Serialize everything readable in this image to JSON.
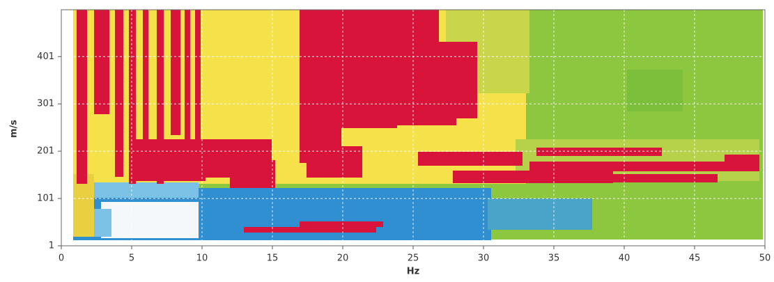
{
  "chart_data": {
    "type": "heatmap",
    "x_label": "Hz",
    "y_label": "m/s",
    "xlim": [
      0,
      50
    ],
    "xticks": [
      0,
      5,
      10,
      15,
      20,
      25,
      30,
      35,
      40,
      45,
      50
    ],
    "ylim": [
      1,
      500
    ],
    "yticks": [
      1,
      101,
      201,
      301,
      401
    ],
    "grid": true
  }
}
